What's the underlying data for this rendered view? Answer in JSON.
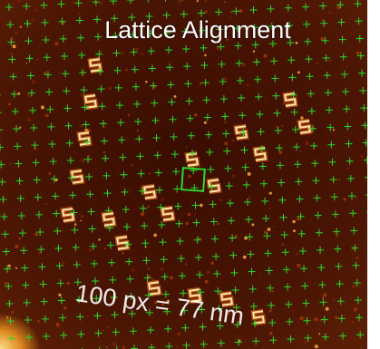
{
  "title": "Lattice Alignment",
  "scale_label": "100 px = 77 nm"
}
